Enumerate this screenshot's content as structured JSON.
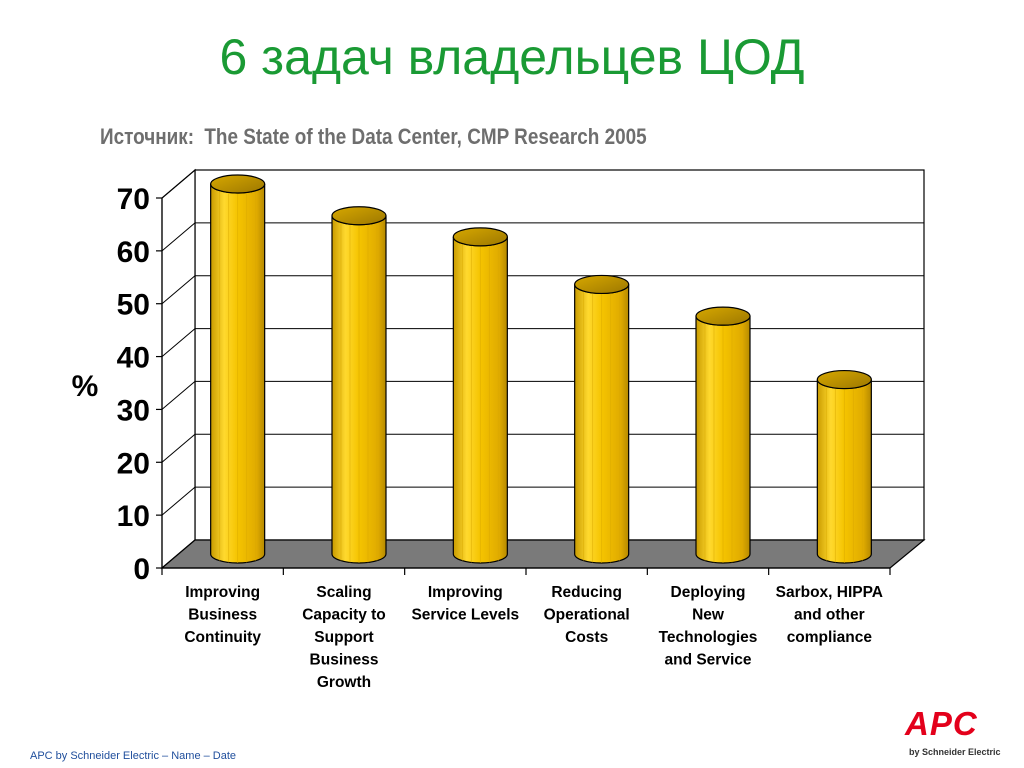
{
  "slide": {
    "title": "6 задач владельцев ЦОД",
    "source_label": "Источник:",
    "source_text": "The State of the Data Center, CMP Research 2005",
    "footer": "APC by Schneider Electric – Name – Date",
    "logo_text": "APC",
    "logo_sub": "by Schneider Electric"
  },
  "colors": {
    "title": "#1a9a34",
    "bar": "#f5c400",
    "bar_dark": "#c89a00",
    "floor": "#7a7a7a",
    "logo": "#e3001b"
  },
  "chart_data": {
    "type": "bar",
    "style": "3d-cylinder",
    "ylabel": "%",
    "ylim": [
      0,
      70
    ],
    "yticks": [
      0,
      10,
      20,
      30,
      40,
      50,
      60,
      70
    ],
    "grid": true,
    "categories": [
      [
        "Improving",
        "Business",
        "Continuity"
      ],
      [
        "Scaling",
        "Capacity to",
        "Support",
        "Business",
        "Growth"
      ],
      [
        "Improving",
        "Service Levels"
      ],
      [
        "Reducing",
        "Operational",
        "Costs"
      ],
      [
        "Deploying",
        "New",
        "Technologies",
        "and Service"
      ],
      [
        "Sarbox, HIPPA",
        "and other",
        "compliance"
      ]
    ],
    "values": [
      70,
      64,
      60,
      51,
      45,
      33
    ]
  }
}
